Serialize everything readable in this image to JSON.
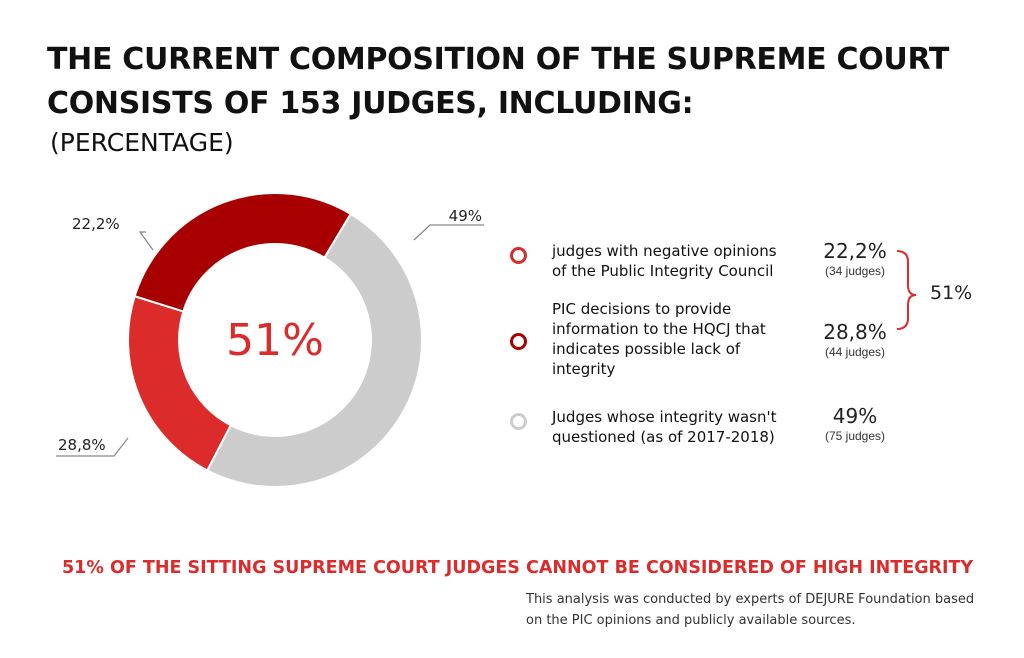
{
  "title_lines": [
    "THE CURRENT COMPOSITION OF THE SUPREME COURT",
    "CONSISTS OF 153 JUDGES, INCLUDING:"
  ],
  "subtitle": "(PERCENTAGE)",
  "chart_data": {
    "type": "pie",
    "donut": true,
    "center_label": "51%",
    "slices": [
      {
        "label": "judges with negative opinions of the Public Integrity Council",
        "value": 22.2,
        "display": "22,2%",
        "count": "(34 judges)",
        "color": "#dc2b2b"
      },
      {
        "label": "PIC decisions to provide information to the HQCJ that indicates possible lack of integrity",
        "value": 28.8,
        "display": "28,8%",
        "count": "(44 judges)",
        "color": "#a80000"
      },
      {
        "label": "Judges whose integrity wasn't questioned (as of 2017-2018)",
        "value": 49,
        "display": "49%",
        "count": "(75 judges)",
        "color": "#cccccc"
      }
    ],
    "bracket_total": "51%"
  },
  "legend": [
    {
      "lines": [
        "judges with negative opinions",
        "of the Public Integrity Council"
      ]
    },
    {
      "lines": [
        "PIC decisions to provide",
        "information to the HQCJ that",
        "indicates possible lack of",
        "integrity"
      ]
    },
    {
      "lines": [
        "Judges whose integrity wasn't",
        "questioned (as of 2017-2018)"
      ]
    }
  ],
  "conclusion": "51% OF THE SITTING SUPREME COURT JUDGES CANNOT BE CONSIDERED OF HIGH INTEGRITY",
  "source_lines": [
    "This analysis was conducted  by experts of DEJURE Foundation based",
    "on the PIC opinions and publicly available sources."
  ]
}
